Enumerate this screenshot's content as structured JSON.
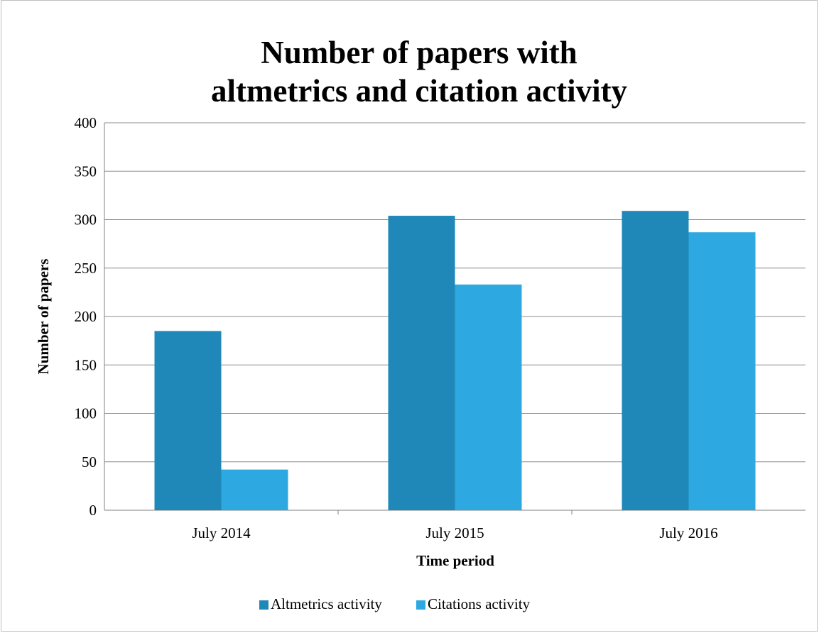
{
  "chart_data": {
    "type": "bar",
    "title_lines": [
      "Number of papers with",
      "altmetrics and citation activity"
    ],
    "categories": [
      "July 2014",
      "July 2015",
      "July 2016"
    ],
    "series": [
      {
        "name": "Altmetrics activity",
        "color": "#1f88b8",
        "values": [
          185,
          304,
          309
        ]
      },
      {
        "name": "Citations activity",
        "color": "#2ea8e0",
        "values": [
          42,
          233,
          287
        ]
      }
    ],
    "xlabel": "Time period",
    "ylabel": "Number of papers",
    "ylim": [
      0,
      400
    ],
    "yticks": [
      "0",
      "50",
      "100",
      "150",
      "200",
      "250",
      "300",
      "350",
      "400"
    ],
    "grid": true,
    "legend_position": "bottom"
  }
}
